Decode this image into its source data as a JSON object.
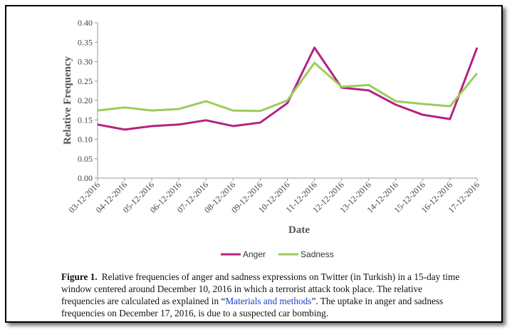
{
  "chart_data": {
    "type": "line",
    "x_label": "Date",
    "y_label": "Relative Frequency",
    "categories": [
      "03-12-2016",
      "04-12-2016",
      "05-12-2016",
      "06-12-2016",
      "07-12-2016",
      "08-12-2016",
      "09-12-2016",
      "10-12-2016",
      "11-12-2016",
      "12-12-2016",
      "13-12-2016",
      "14-12-2016",
      "15-12-2016",
      "16-12-2016",
      "17-12-2016"
    ],
    "series": [
      {
        "name": "Anger",
        "color": "#b4237f",
        "values": [
          0.138,
          0.125,
          0.134,
          0.138,
          0.149,
          0.134,
          0.143,
          0.193,
          0.336,
          0.233,
          0.226,
          0.189,
          0.163,
          0.152,
          0.336
        ]
      },
      {
        "name": "Sadness",
        "color": "#9ccc5a",
        "values": [
          0.174,
          0.182,
          0.174,
          0.178,
          0.198,
          0.174,
          0.173,
          0.2,
          0.297,
          0.235,
          0.24,
          0.198,
          0.191,
          0.185,
          0.27
        ]
      }
    ],
    "ylim": [
      0,
      0.4
    ],
    "yticks": [
      {
        "value": 0,
        "label": "0.00"
      },
      {
        "value": 0.05,
        "label": "0.05"
      },
      {
        "value": 0.1,
        "label": "0.10"
      },
      {
        "value": 0.15,
        "label": "0.15"
      },
      {
        "value": 0.2,
        "label": "0.20"
      },
      {
        "value": 0.25,
        "label": "0.25"
      },
      {
        "value": 0.3,
        "label": "0.30"
      },
      {
        "value": 0.35,
        "label": "0.35"
      },
      {
        "value": 0.4,
        "label": "0.40"
      }
    ],
    "grid": false,
    "legend": "bottom"
  },
  "caption": {
    "label": "Figure 1.",
    "text_before": "Relative frequencies of anger and sadness expressions on Twitter (in Turkish) in a 15-day time window centered around December 10, 2016 in which a terrorist attack took place. The relative frequencies are calculated as explained in “",
    "link": "Materials and methods",
    "text_after": "”. The uptake in anger and sadness frequencies on December 17, 2016, is due to a suspected car bombing."
  }
}
